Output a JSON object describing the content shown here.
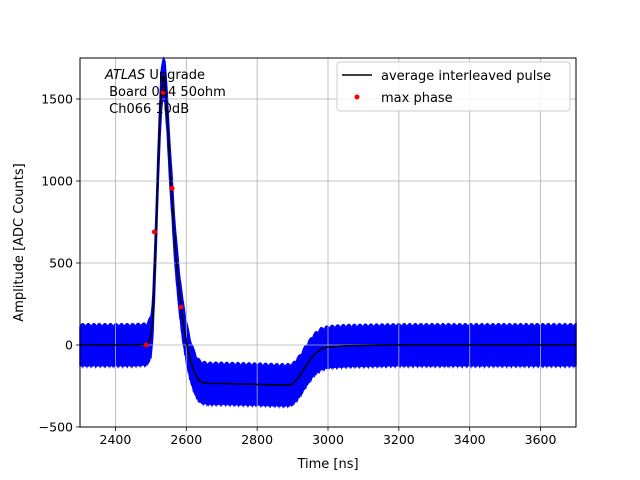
{
  "chart_data": {
    "type": "scatter",
    "xlabel": "Time [ns]",
    "ylabel": "Amplitude [ADC Counts]",
    "xlim": [
      2300,
      3700
    ],
    "ylim": [
      -500,
      1750
    ],
    "xticks": [
      2400,
      2600,
      2800,
      3000,
      3200,
      3400,
      3600
    ],
    "yticks": [
      -500,
      0,
      500,
      1000,
      1500
    ],
    "grid": true,
    "legend_position": "top-right",
    "annotation": {
      "italic_word": "ATLAS",
      "line1_rest": " Upgrade",
      "line2": " Board 034 50ohm",
      "line3": " Ch066 10dB"
    },
    "series": [
      {
        "name": "average interleaved pulse",
        "type": "line",
        "color": "#000000",
        "x": [
          2300,
          2450,
          2490,
          2500,
          2505,
          2510,
          2515,
          2520,
          2525,
          2530,
          2535,
          2540,
          2545,
          2550,
          2555,
          2560,
          2565,
          2570,
          2580,
          2590,
          2600,
          2610,
          2620,
          2630,
          2640,
          2660,
          2700,
          2800,
          2880,
          2900,
          2920,
          2940,
          2960,
          2980,
          3000,
          3050,
          3200,
          3700
        ],
        "y": [
          0,
          0,
          5,
          50,
          150,
          400,
          700,
          1050,
          1350,
          1560,
          1640,
          1600,
          1450,
          1250,
          1050,
          900,
          720,
          560,
          330,
          150,
          20,
          -80,
          -150,
          -200,
          -225,
          -235,
          -235,
          -240,
          -245,
          -240,
          -190,
          -120,
          -60,
          -25,
          -12,
          -5,
          0,
          0
        ]
      },
      {
        "name": "max phase",
        "type": "scatter",
        "color": "#ff0000",
        "x": [
          2487,
          2510,
          2535,
          2560,
          2585
        ],
        "y": [
          0,
          690,
          1540,
          955,
          230
        ]
      },
      {
        "name": "",
        "type": "scatter-band",
        "color": "#0000ff",
        "band_halfwidth": 130
      }
    ]
  }
}
